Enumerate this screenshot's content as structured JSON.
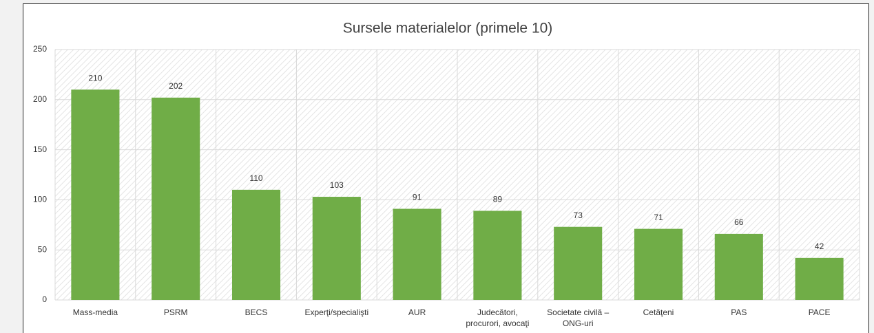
{
  "chart_data": {
    "type": "bar",
    "title": "Sursele materialelor (primele 10)",
    "categories": [
      "Mass-media",
      "PSRM",
      "BECS",
      "Experţi/specialişti",
      "AUR",
      "Judecători, procurori, avocaţi",
      "Societate civilă – ONG-uri",
      "Cetăţeni",
      "PAS",
      "PACE"
    ],
    "values": [
      210,
      202,
      110,
      103,
      91,
      89,
      73,
      71,
      66,
      42
    ],
    "color": "#70ad47",
    "ylim": [
      0,
      250
    ],
    "yticks": [
      0,
      50,
      100,
      150,
      200,
      250
    ],
    "grid": true
  }
}
